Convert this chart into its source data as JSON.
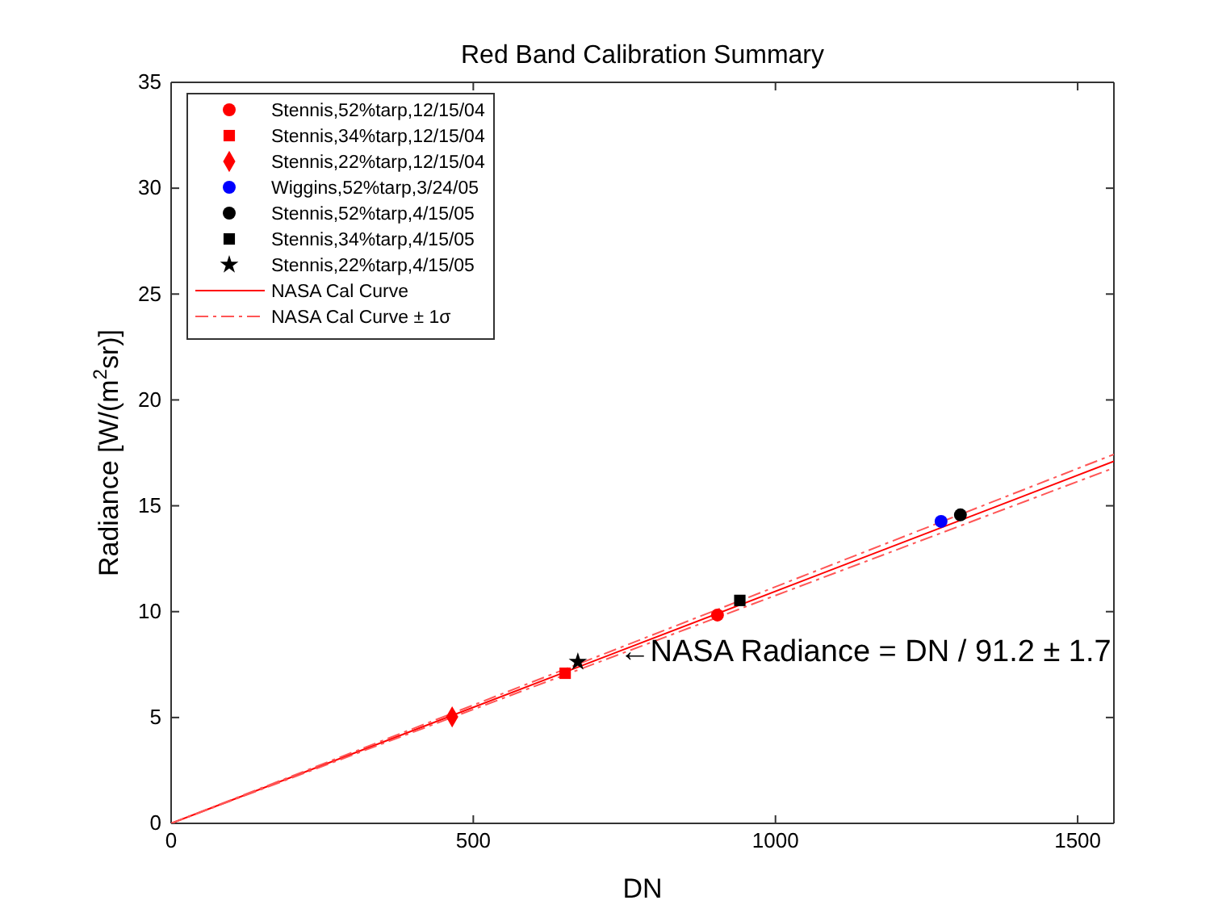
{
  "chart_data": {
    "type": "scatter",
    "title": "Red Band Calibration Summary",
    "xlabel": "DN",
    "ylabel": "Radiance [W/(m$^{2}$sr)]",
    "xlim": [
      0,
      1560
    ],
    "ylim": [
      0,
      35
    ],
    "xticks": [
      0,
      500,
      1000,
      1500
    ],
    "yticks": [
      0,
      5,
      10,
      15,
      20,
      25,
      30,
      35
    ],
    "grid": false,
    "legend": "top left",
    "series": [
      {
        "name": "Stennis,52%tarp,12/15/04",
        "color": "#ff0000",
        "marker": "circle",
        "x": [
          904
        ],
        "values": [
          9.84
        ]
      },
      {
        "name": "Stennis,34%tarp,12/15/04",
        "color": "#ff0000",
        "marker": "square",
        "x": [
          652
        ],
        "values": [
          7.09
        ]
      },
      {
        "name": "Stennis,22%tarp,12/15/04",
        "color": "#ff0000",
        "marker": "diamond",
        "x": [
          465
        ],
        "values": [
          5.03
        ]
      },
      {
        "name": "Wiggins,52%tarp,3/24/05",
        "color": "#0000ff",
        "marker": "circle",
        "x": [
          1274
        ],
        "values": [
          14.26
        ]
      },
      {
        "name": "Stennis,52%tarp,4/15/05",
        "color": "#000000",
        "marker": "circle",
        "x": [
          1306
        ],
        "values": [
          14.57
        ]
      },
      {
        "name": "Stennis,34%tarp,4/15/05",
        "color": "#000000",
        "marker": "square",
        "x": [
          941
        ],
        "values": [
          10.53
        ]
      },
      {
        "name": "Stennis,22%tarp,4/15/05",
        "color": "#000000",
        "marker": "star",
        "x": [
          673
        ],
        "values": [
          7.63
        ]
      },
      {
        "name": "NASA Cal Curve",
        "type": "line",
        "color": "#ff0000",
        "line_style": "solid",
        "x": [
          0,
          1560
        ],
        "values": [
          0,
          17.1
        ]
      },
      {
        "name": "NASA Cal Curve ± 1σ",
        "type": "line",
        "color": "#ff5555",
        "line_style": "dashed",
        "x": [
          0,
          1560
        ],
        "values": [
          0,
          17.43
        ]
      },
      {
        "type": "line",
        "color": "#ff5555",
        "line_style": "dashed",
        "x": [
          0,
          1560
        ],
        "values": [
          0,
          16.79
        ]
      }
    ],
    "annotations": [
      {
        "text": "←NASA Radiance = DN / 91.2 ± 1.7",
        "x": 742,
        "y": 8.16
      }
    ]
  }
}
